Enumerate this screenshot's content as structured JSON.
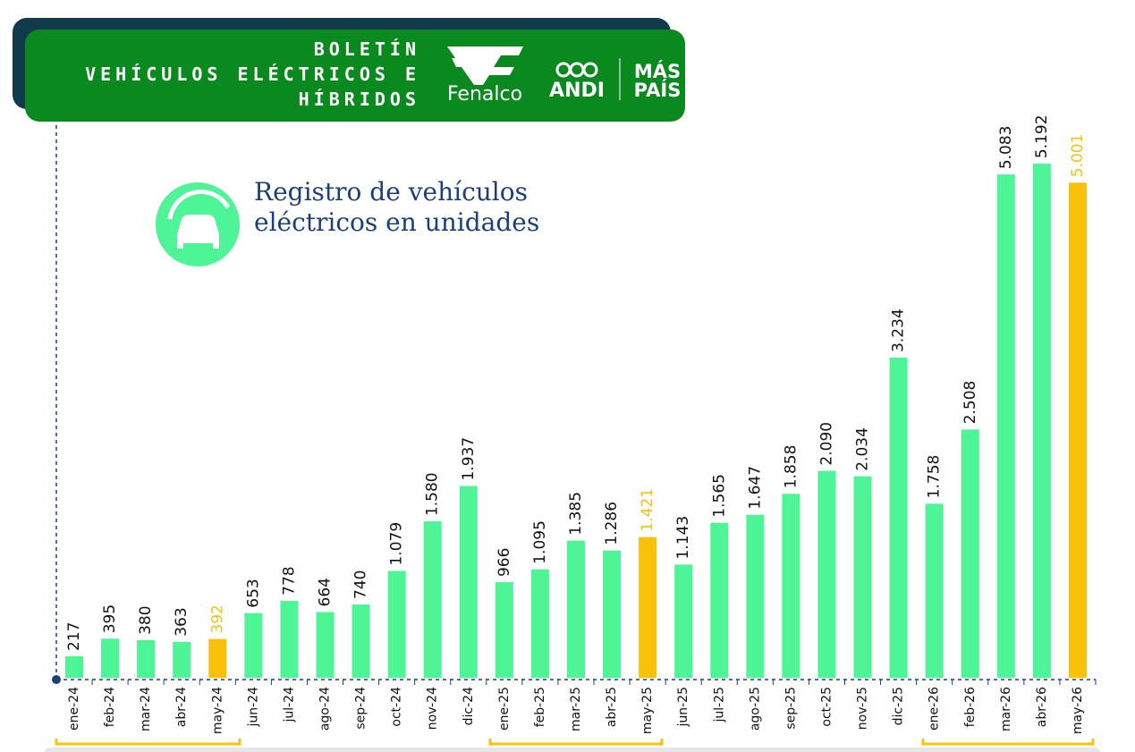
{
  "header": {
    "line1": "BOLETÍN",
    "line2": "VEHÍCULOS ELÉCTRICOS E",
    "line3": "HÍBRIDOS",
    "logos": [
      "Fenalco",
      "ANDI",
      "MÁS",
      "PAÍS"
    ]
  },
  "chart_data": {
    "type": "bar",
    "title": [
      "Registro de vehículos",
      "eléctricos  en unidades"
    ],
    "categories": [
      "ene-24",
      "feb-24",
      "mar-24",
      "abr-24",
      "may-24",
      "jun-24",
      "jul-24",
      "ago-24",
      "sep-24",
      "oct-24",
      "nov-24",
      "dic-24",
      "ene-25",
      "feb-25",
      "mar-25",
      "abr-25",
      "may-25",
      "jun-25",
      "jul-25",
      "ago-25",
      "sep-25",
      "oct-25",
      "nov-25",
      "dic-25",
      "ene-26",
      "feb-26",
      "mar-26",
      "abr-26",
      "may-26"
    ],
    "values": [
      217,
      395,
      380,
      363,
      392,
      653,
      778,
      664,
      740,
      1079,
      1580,
      1937,
      966,
      1095,
      1385,
      1286,
      1421,
      1143,
      1565,
      1647,
      1858,
      2090,
      2034,
      3234,
      1758,
      2508,
      5083,
      5192,
      5001
    ],
    "value_labels": [
      "217",
      "395",
      "380",
      "363",
      "392",
      "653",
      "778",
      "664",
      "740",
      "1.079",
      "1.580",
      "1.937",
      "966",
      "1.095",
      "1.385",
      "1.286",
      "1.421",
      "1.143",
      "1.565",
      "1.647",
      "1.858",
      "2.090",
      "2.034",
      "3.234",
      "1.758",
      "2.508",
      "5.083",
      "5.192",
      "5.001"
    ],
    "colors": [
      "#4df597",
      "#4df597",
      "#4df597",
      "#4df597",
      "#f9c10a",
      "#4df597",
      "#4df597",
      "#4df597",
      "#4df597",
      "#4df597",
      "#4df597",
      "#4df597",
      "#4df597",
      "#4df597",
      "#4df597",
      "#4df597",
      "#f9c10a",
      "#4df597",
      "#4df597",
      "#4df597",
      "#4df597",
      "#4df597",
      "#4df597",
      "#4df597",
      "#4df597",
      "#4df597",
      "#4df597",
      "#4df597",
      "#f9c10a"
    ],
    "ylim": [
      0,
      5500
    ]
  }
}
